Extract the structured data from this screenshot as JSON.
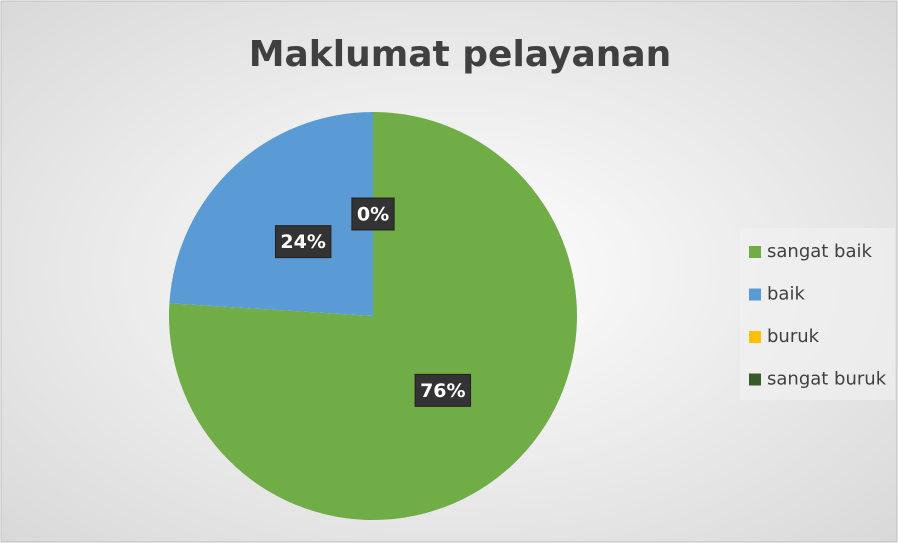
{
  "chart_data": {
    "type": "pie",
    "title": "Maklumat pelayanan",
    "categories": [
      "sangat baik",
      "baik",
      "buruk",
      "sangat buruk"
    ],
    "values": [
      76,
      24,
      0,
      0
    ],
    "value_labels": [
      "76%",
      "24%",
      "0%",
      null
    ],
    "colors": [
      "#70ad47",
      "#5b9bd5",
      "#ffc000",
      "#38592a"
    ],
    "legend": "right"
  }
}
